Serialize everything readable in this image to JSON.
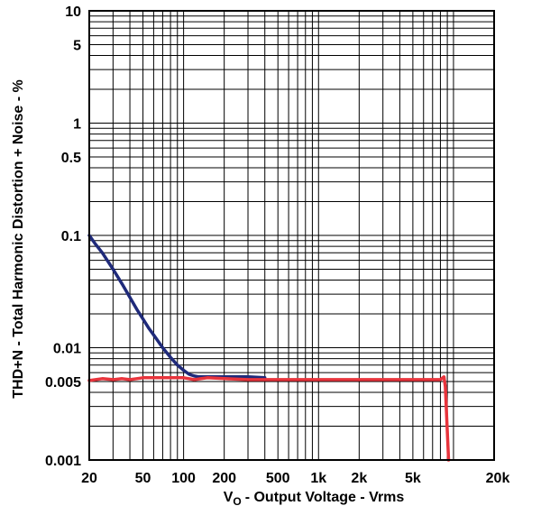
{
  "chart_data": {
    "type": "line",
    "x_scale": "log",
    "y_scale": "log",
    "xlim": [
      20,
      20000
    ],
    "ylim": [
      0.001,
      10
    ],
    "grid": true,
    "legend": "none",
    "xlabel": "- Output Voltage - Vrms",
    "xlabel_prefix": "V",
    "xlabel_sub": "O",
    "ylabel": "THD+N - Total Harmonic Distortion + Noise - %",
    "x_ticks": [
      {
        "value": 20,
        "label": "20"
      },
      {
        "value": 50,
        "label": "50"
      },
      {
        "value": 100,
        "label": "100"
      },
      {
        "value": 200,
        "label": "200"
      },
      {
        "value": 500,
        "label": "500"
      },
      {
        "value": 1000,
        "label": "1k"
      },
      {
        "value": 2000,
        "label": "2k"
      },
      {
        "value": 5000,
        "label": "5k"
      },
      {
        "value": 20000,
        "label": "20k"
      }
    ],
    "y_ticks": [
      {
        "value": 10,
        "label": "10"
      },
      {
        "value": 5,
        "label": "5"
      },
      {
        "value": 1,
        "label": "1"
      },
      {
        "value": 0.5,
        "label": "0.5"
      },
      {
        "value": 0.1,
        "label": "0.1"
      },
      {
        "value": 0.01,
        "label": "0.01"
      },
      {
        "value": 0.005,
        "label": "0.005"
      },
      {
        "value": 0.001,
        "label": "0.001"
      }
    ],
    "series": [
      {
        "color": "#1f2a7a",
        "x": [
          20,
          22,
          25,
          30,
          35,
          40,
          45,
          50,
          55,
          60,
          70,
          80,
          90,
          100,
          110,
          120,
          130,
          150,
          200,
          250,
          300,
          400
        ],
        "y": [
          0.1,
          0.085,
          0.07,
          0.05,
          0.037,
          0.028,
          0.022,
          0.018,
          0.015,
          0.013,
          0.01,
          0.0082,
          0.007,
          0.0063,
          0.0058,
          0.0056,
          0.0055,
          0.0055,
          0.0055,
          0.0055,
          0.0055,
          0.0054
        ]
      },
      {
        "color": "#e8343c",
        "x": [
          20,
          25,
          30,
          35,
          40,
          45,
          50,
          60,
          70,
          80,
          100,
          120,
          150,
          200,
          300,
          500,
          1000,
          2000,
          3000,
          5000,
          7000,
          8000,
          8500,
          8700,
          9200
        ],
        "y": [
          0.0051,
          0.0053,
          0.0052,
          0.0053,
          0.0052,
          0.0053,
          0.0054,
          0.0054,
          0.0054,
          0.0054,
          0.0054,
          0.0052,
          0.0054,
          0.0053,
          0.0052,
          0.0052,
          0.0052,
          0.0052,
          0.0052,
          0.0052,
          0.0052,
          0.0052,
          0.0055,
          0.0045,
          0.001
        ]
      }
    ]
  }
}
